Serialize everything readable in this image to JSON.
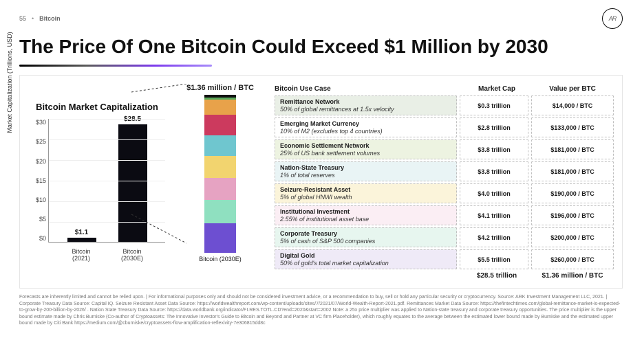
{
  "meta": {
    "page_number": "55",
    "section": "Bitcoin",
    "title": "The Price Of One Bitcoin Could Exceed $1 Million by 2030"
  },
  "chart": {
    "caption": "Bitcoin Market Capitalization",
    "y_title": "Market Capitalization (Trillions, USD)",
    "ylim": [
      0,
      30
    ],
    "ytick_step": 5,
    "yticks": [
      "$30",
      "$25",
      "$20",
      "$15",
      "$10",
      "$5",
      "$0"
    ],
    "bars": [
      {
        "label": "Bitcoin (2021)",
        "value": 1.1,
        "display": "$1.1"
      },
      {
        "label": "Bitcoin (2030E)",
        "value": 28.5,
        "display": "$28.5"
      }
    ],
    "bar_color": "#0b0b12",
    "grid_color": "#eeeeee"
  },
  "stacked": {
    "top_label": "$1.36 million / BTC",
    "bottom_label": "Bitcoin (2030E)",
    "total": 28.5,
    "segments": [
      {
        "name": "digital-gold",
        "value": 5.5,
        "color": "#6d4fd1"
      },
      {
        "name": "corporate-treasury",
        "value": 4.2,
        "color": "#8fe0c0"
      },
      {
        "name": "institutional",
        "value": 4.1,
        "color": "#e6a3c2"
      },
      {
        "name": "seizure-resistant",
        "value": 4.0,
        "color": "#f2d46f"
      },
      {
        "name": "nation-state",
        "value": 3.8,
        "color": "#6fc6cf"
      },
      {
        "name": "economic-settlement",
        "value": 3.8,
        "color": "#cc3a5e"
      },
      {
        "name": "emerging-market",
        "value": 2.8,
        "color": "#e8a24a"
      },
      {
        "name": "remittance",
        "value": 0.3,
        "color": "#5aa85a"
      }
    ]
  },
  "table": {
    "head": {
      "c1": "Bitcoin Use Case",
      "c2": "Market Cap",
      "c3": "Value per BTC"
    },
    "rows": [
      {
        "title": "Remittance Network",
        "sub": "50% of global remittances at 1.5x velocity",
        "cap": "$0.3 trillion",
        "vpb": "$14,000 / BTC",
        "bg": "#e9efe6"
      },
      {
        "title": "Emerging Market Currency",
        "sub": "10% of M2 (excludes top 4 countries)",
        "cap": "$2.8 trillion",
        "vpb": "$133,000 / BTC",
        "bg": "#ffffff"
      },
      {
        "title": "Economic Settlement Network",
        "sub": "25% of US bank settlement volumes",
        "cap": "$3.8 trillion",
        "vpb": "$181,000 / BTC",
        "bg": "#edf3e1"
      },
      {
        "title": "Nation-State Treasury",
        "sub": "1% of total reserves",
        "cap": "$3.8 trillion",
        "vpb": "$181,000 / BTC",
        "bg": "#e9f4f5"
      },
      {
        "title": "Seizure-Resistant Asset",
        "sub": "5% of global HNWI wealth",
        "cap": "$4.0 trillion",
        "vpb": "$190,000 / BTC",
        "bg": "#fbf4da"
      },
      {
        "title": "Institutional Investment",
        "sub": "2.55% of institutional asset base",
        "cap": "$4.1 trillion",
        "vpb": "$196,000 / BTC",
        "bg": "#fbeef4"
      },
      {
        "title": "Corporate Treasury",
        "sub": "5% of cash of S&P 500 companies",
        "cap": "$4.2 trillion",
        "vpb": "$200,000 / BTC",
        "bg": "#e7f6ef"
      },
      {
        "title": "Digital Gold",
        "sub": "50% of gold's total market capitalization",
        "cap": "$5.5 trillion",
        "vpb": "$260,000 / BTC",
        "bg": "#efeaf7"
      }
    ],
    "totals": {
      "cap": "$28.5 trillion",
      "vpb": "$1.36 million / BTC"
    }
  },
  "footnote": "Forecasts are inherently limited and cannot be relied upon. | For informational purposes only and should not be considered investment advice, or a recommendation to buy, sell or hold any particular security or cryptocurrency. Source: ARK Investment Management LLC, 2021. | Corporate Treasury Data Source: Capital IQ. Seizure Resistant Asset Data Source: https://worldwealthreport.com/wp-content/uploads/sites/7/2021/07/World-Wealth-Report-2021.pdf. Remittances Market Data Source: https://thefintechtimes.com/global-remittance-market-is-expected-to-grow-by-200-billion-by-2026/ . Nation State Treasury Data Source: https://data.worldbank.org/indicator/FI.RES.TOTL.CD?end=2020&start=2002 Note: a 25x price multiplier was applied to Nation-state treasury and corporate treasury opportunities. The price multiplier is the upper bound estimate made by Chris Burniske (Co-author of Cryptoassets: The Innovative Investor's Guide to Bitcoin and Beyond and Partner at VC firm Placeholder), which roughly equates to the average between the estimated lower bound made by Burniske and the estimated upper bound made by Citi Bank https://medium.com/@cburniske/cryptoassets-flow-amplification-reflexivity-7e306815dd8c"
}
